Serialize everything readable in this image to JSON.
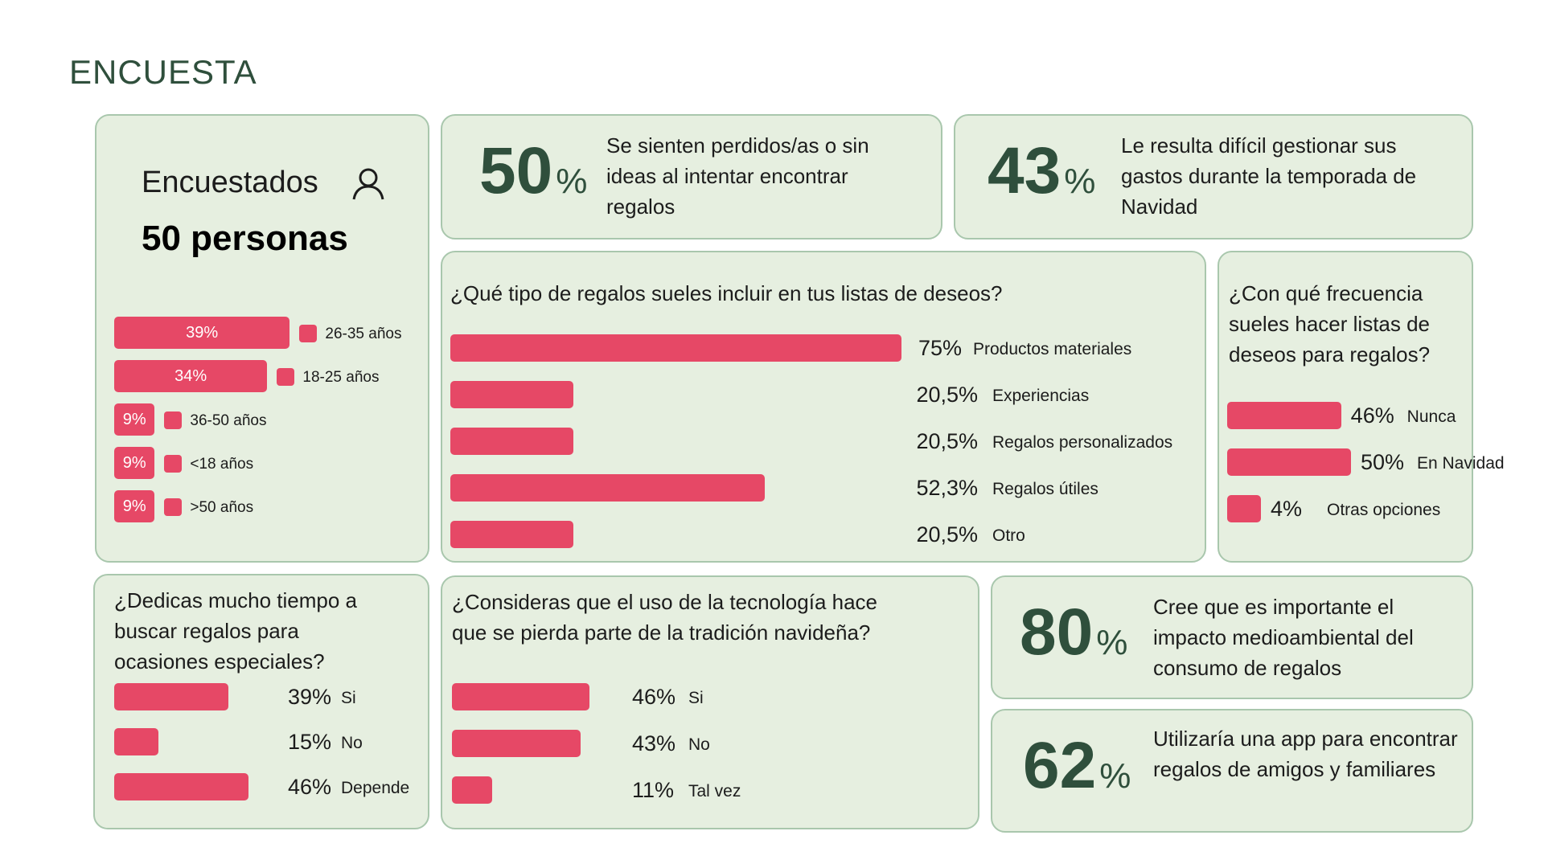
{
  "title": "ENCUESTA",
  "colors": {
    "accent": "#e64866",
    "card_bg": "#e6efe0",
    "card_border": "#a9c7ad",
    "title": "#2f4f3c"
  },
  "respondents": {
    "label": "Encuestados",
    "icon": "user-icon",
    "count_text": "50 personas"
  },
  "stats": [
    {
      "value": "50",
      "unit": "%",
      "text": "Se sienten perdidos/as o sin ideas al intentar encontrar regalos"
    },
    {
      "value": "43",
      "unit": "%",
      "text": "Le resulta difícil gestionar sus gastos durante la temporada de Navidad"
    },
    {
      "value": "80",
      "unit": "%",
      "text": "Cree que es importante el impacto medioambiental del consumo de regalos"
    },
    {
      "value": "62",
      "unit": "%",
      "text": "Utilizaría una app para encontrar regalos de amigos y familiares"
    }
  ],
  "chart_data": [
    {
      "id": "age",
      "type": "bar",
      "orientation": "horizontal",
      "categories": [
        "26-35 años",
        "18-25 años",
        "36-50 años",
        "<18 años",
        ">50 años"
      ],
      "values": [
        39,
        34,
        9,
        9,
        9
      ],
      "labels": [
        "39%",
        "34%",
        "9%",
        "9%",
        "9%"
      ],
      "unit": "%"
    },
    {
      "id": "gift-types",
      "type": "bar",
      "orientation": "horizontal",
      "title": "¿Qué tipo de regalos sueles incluir en tus listas de deseos?",
      "categories": [
        "Productos materiales",
        "Experiencias",
        "Regalos personalizados",
        "Regalos útiles",
        "Otro"
      ],
      "values": [
        75,
        20.5,
        20.5,
        52.3,
        20.5
      ],
      "labels": [
        "75%",
        "20,5%",
        "20,5%",
        "52,3%",
        "20,5%"
      ],
      "unit": "%"
    },
    {
      "id": "frequency",
      "type": "bar",
      "orientation": "horizontal",
      "title": "¿Con qué frecuencia sueles hacer listas de deseos para regalos?",
      "categories": [
        "Nunca",
        "En Navidad",
        "Otras opciones"
      ],
      "values": [
        46,
        50,
        4
      ],
      "labels": [
        "46%",
        "50%",
        "4%"
      ],
      "unit": "%"
    },
    {
      "id": "time",
      "type": "bar",
      "orientation": "horizontal",
      "title": "¿Dedicas mucho tiempo a buscar regalos para ocasiones especiales?",
      "categories": [
        "Si",
        "No",
        "Depende"
      ],
      "values": [
        39,
        15,
        46
      ],
      "labels": [
        "39%",
        "15%",
        "46%"
      ],
      "unit": "%"
    },
    {
      "id": "technology",
      "type": "bar",
      "orientation": "horizontal",
      "title": "¿Consideras que el uso de la tecnología hace que se pierda parte de la tradición navideña?",
      "categories": [
        "Si",
        "No",
        "Tal vez"
      ],
      "values": [
        46,
        43,
        11
      ],
      "labels": [
        "46%",
        "43%",
        "11%"
      ],
      "unit": "%"
    }
  ]
}
